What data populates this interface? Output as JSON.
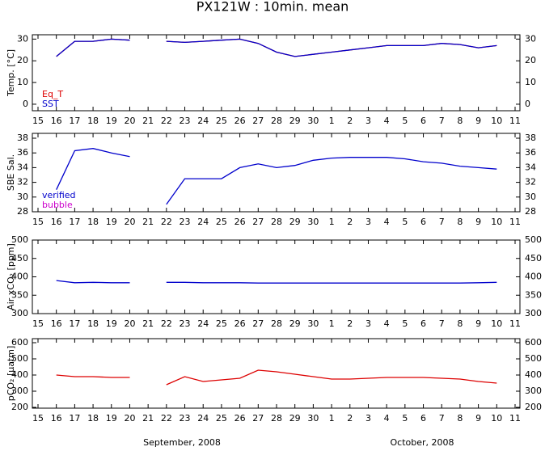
{
  "title": "PX121W : 10min. mean",
  "chart_data": [
    {
      "type": "line",
      "ylabel": "Temp. [°C]",
      "x": [
        "2008-09-16",
        "2008-09-17",
        "2008-09-18",
        "2008-09-19",
        "2008-09-20",
        "2008-09-21",
        "2008-09-22",
        "2008-09-23",
        "2008-09-24",
        "2008-09-25",
        "2008-09-26",
        "2008-09-27",
        "2008-09-28",
        "2008-09-29",
        "2008-09-30",
        "2008-10-01",
        "2008-10-02",
        "2008-10-03",
        "2008-10-04",
        "2008-10-05",
        "2008-10-06",
        "2008-10-07",
        "2008-10-08",
        "2008-10-09",
        "2008-10-10"
      ],
      "xlim": [
        "2008-09-15",
        "2008-10-11"
      ],
      "xticks": [
        {
          "value": "2008-09-15",
          "label": "15"
        },
        {
          "value": "2008-09-16",
          "label": "16"
        },
        {
          "value": "2008-09-17",
          "label": "17"
        },
        {
          "value": "2008-09-18",
          "label": "18"
        },
        {
          "value": "2008-09-19",
          "label": "19"
        },
        {
          "value": "2008-09-20",
          "label": "20"
        },
        {
          "value": "2008-09-21",
          "label": "21"
        },
        {
          "value": "2008-09-22",
          "label": "22"
        },
        {
          "value": "2008-09-23",
          "label": "23"
        },
        {
          "value": "2008-09-24",
          "label": "24"
        },
        {
          "value": "2008-09-25",
          "label": "25"
        },
        {
          "value": "2008-09-26",
          "label": "26"
        },
        {
          "value": "2008-09-27",
          "label": "27"
        },
        {
          "value": "2008-09-28",
          "label": "28"
        },
        {
          "value": "2008-09-29",
          "label": "29"
        },
        {
          "value": "2008-09-30",
          "label": "30"
        },
        {
          "value": "2008-10-01",
          "label": "1"
        },
        {
          "value": "2008-10-02",
          "label": "2"
        },
        {
          "value": "2008-10-03",
          "label": "3"
        },
        {
          "value": "2008-10-04",
          "label": "4"
        },
        {
          "value": "2008-10-05",
          "label": "5"
        },
        {
          "value": "2008-10-06",
          "label": "6"
        },
        {
          "value": "2008-10-07",
          "label": "7"
        },
        {
          "value": "2008-10-08",
          "label": "8"
        },
        {
          "value": "2008-10-09",
          "label": "9"
        },
        {
          "value": "2008-10-10",
          "label": "10"
        },
        {
          "value": "2008-10-11",
          "label": "11"
        }
      ],
      "ylim": [
        -3,
        32
      ],
      "yticks": [
        0,
        10,
        20,
        30
      ],
      "legend": "lower left",
      "series": [
        {
          "name": "Eq_T",
          "color": "#dd0000",
          "values": [
            22,
            29,
            29,
            30,
            29.5,
            null,
            29,
            28.5,
            29,
            29.5,
            30,
            28,
            24,
            22,
            23,
            24,
            25,
            26,
            27,
            27,
            27,
            28,
            27.5,
            26,
            27
          ]
        },
        {
          "name": "SST",
          "color": "#0000cc",
          "values": [
            22,
            29,
            29,
            30,
            29.5,
            null,
            29,
            28.5,
            29,
            29.5,
            30,
            28,
            24,
            22,
            23,
            24,
            25,
            26,
            27,
            27,
            27,
            28,
            27.5,
            26,
            27
          ]
        }
      ]
    },
    {
      "type": "line",
      "ylabel": "SBE Sal.",
      "x": [
        "2008-09-16",
        "2008-09-17",
        "2008-09-18",
        "2008-09-19",
        "2008-09-20",
        "2008-09-21",
        "2008-09-22",
        "2008-09-23",
        "2008-09-24",
        "2008-09-25",
        "2008-09-26",
        "2008-09-27",
        "2008-09-28",
        "2008-09-29",
        "2008-09-30",
        "2008-10-01",
        "2008-10-02",
        "2008-10-03",
        "2008-10-04",
        "2008-10-05",
        "2008-10-06",
        "2008-10-07",
        "2008-10-08",
        "2008-10-09",
        "2008-10-10"
      ],
      "xlim": [
        "2008-09-15",
        "2008-10-11"
      ],
      "xticks": [
        {
          "value": "2008-09-15",
          "label": "15"
        },
        {
          "value": "2008-09-16",
          "label": "16"
        },
        {
          "value": "2008-09-17",
          "label": "17"
        },
        {
          "value": "2008-09-18",
          "label": "18"
        },
        {
          "value": "2008-09-19",
          "label": "19"
        },
        {
          "value": "2008-09-20",
          "label": "20"
        },
        {
          "value": "2008-09-21",
          "label": "21"
        },
        {
          "value": "2008-09-22",
          "label": "22"
        },
        {
          "value": "2008-09-23",
          "label": "23"
        },
        {
          "value": "2008-09-24",
          "label": "24"
        },
        {
          "value": "2008-09-25",
          "label": "25"
        },
        {
          "value": "2008-09-26",
          "label": "26"
        },
        {
          "value": "2008-09-27",
          "label": "27"
        },
        {
          "value": "2008-09-28",
          "label": "28"
        },
        {
          "value": "2008-09-29",
          "label": "29"
        },
        {
          "value": "2008-09-30",
          "label": "30"
        },
        {
          "value": "2008-10-01",
          "label": "1"
        },
        {
          "value": "2008-10-02",
          "label": "2"
        },
        {
          "value": "2008-10-03",
          "label": "3"
        },
        {
          "value": "2008-10-04",
          "label": "4"
        },
        {
          "value": "2008-10-05",
          "label": "5"
        },
        {
          "value": "2008-10-06",
          "label": "6"
        },
        {
          "value": "2008-10-07",
          "label": "7"
        },
        {
          "value": "2008-10-08",
          "label": "8"
        },
        {
          "value": "2008-10-09",
          "label": "9"
        },
        {
          "value": "2008-10-10",
          "label": "10"
        },
        {
          "value": "2008-10-11",
          "label": "11"
        }
      ],
      "ylim": [
        28,
        38
      ],
      "yticks": [
        28,
        30,
        32,
        34,
        36,
        38
      ],
      "legend": "lower left",
      "series": [
        {
          "name": "verified",
          "color": "#0000cc",
          "values": [
            31,
            36.3,
            36.6,
            36,
            35.5,
            null,
            29,
            32.5,
            32.5,
            32.5,
            34,
            34.5,
            34,
            34.3,
            35,
            35.3,
            35.4,
            35.4,
            35.4,
            35.2,
            34.8,
            34.6,
            34.2,
            34,
            33.8
          ]
        },
        {
          "name": "bubble",
          "color": "#cc00cc",
          "values": [
            null,
            null,
            null,
            null,
            null,
            null,
            null,
            null,
            null,
            null,
            null,
            null,
            null,
            null,
            null,
            null,
            null,
            null,
            null,
            null,
            null,
            null,
            null,
            null,
            null
          ]
        }
      ]
    },
    {
      "type": "line",
      "ylabel": "Air xCO₂ [ppm]",
      "x": [
        "2008-09-16",
        "2008-09-17",
        "2008-09-18",
        "2008-09-19",
        "2008-09-20",
        "2008-09-21",
        "2008-09-22",
        "2008-09-23",
        "2008-09-24",
        "2008-09-25",
        "2008-09-26",
        "2008-09-27",
        "2008-09-28",
        "2008-09-29",
        "2008-09-30",
        "2008-10-01",
        "2008-10-02",
        "2008-10-03",
        "2008-10-04",
        "2008-10-05",
        "2008-10-06",
        "2008-10-07",
        "2008-10-08",
        "2008-10-09",
        "2008-10-10"
      ],
      "xlim": [
        "2008-09-15",
        "2008-10-11"
      ],
      "xticks": [
        {
          "value": "2008-09-15",
          "label": "15"
        },
        {
          "value": "2008-09-16",
          "label": "16"
        },
        {
          "value": "2008-09-17",
          "label": "17"
        },
        {
          "value": "2008-09-18",
          "label": "18"
        },
        {
          "value": "2008-09-19",
          "label": "19"
        },
        {
          "value": "2008-09-20",
          "label": "20"
        },
        {
          "value": "2008-09-21",
          "label": "21"
        },
        {
          "value": "2008-09-22",
          "label": "22"
        },
        {
          "value": "2008-09-23",
          "label": "23"
        },
        {
          "value": "2008-09-24",
          "label": "24"
        },
        {
          "value": "2008-09-25",
          "label": "25"
        },
        {
          "value": "2008-09-26",
          "label": "26"
        },
        {
          "value": "2008-09-27",
          "label": "27"
        },
        {
          "value": "2008-09-28",
          "label": "28"
        },
        {
          "value": "2008-09-29",
          "label": "29"
        },
        {
          "value": "2008-09-30",
          "label": "30"
        },
        {
          "value": "2008-10-01",
          "label": "1"
        },
        {
          "value": "2008-10-02",
          "label": "2"
        },
        {
          "value": "2008-10-03",
          "label": "3"
        },
        {
          "value": "2008-10-04",
          "label": "4"
        },
        {
          "value": "2008-10-05",
          "label": "5"
        },
        {
          "value": "2008-10-06",
          "label": "6"
        },
        {
          "value": "2008-10-07",
          "label": "7"
        },
        {
          "value": "2008-10-08",
          "label": "8"
        },
        {
          "value": "2008-10-09",
          "label": "9"
        },
        {
          "value": "2008-10-10",
          "label": "10"
        },
        {
          "value": "2008-10-11",
          "label": "11"
        }
      ],
      "ylim": [
        300,
        500
      ],
      "yticks": [
        300,
        350,
        400,
        450,
        500
      ],
      "series": [
        {
          "color": "#0000cc",
          "values": [
            390,
            384,
            385,
            384,
            384,
            null,
            385,
            385,
            384,
            384,
            384,
            383,
            383,
            383,
            383,
            383,
            383,
            383,
            383,
            383,
            383,
            383,
            383,
            384,
            385
          ]
        }
      ]
    },
    {
      "type": "line",
      "ylabel": "pCO₂ [μatm]",
      "x": [
        "2008-09-16",
        "2008-09-17",
        "2008-09-18",
        "2008-09-19",
        "2008-09-20",
        "2008-09-21",
        "2008-09-22",
        "2008-09-23",
        "2008-09-24",
        "2008-09-25",
        "2008-09-26",
        "2008-09-27",
        "2008-09-28",
        "2008-09-29",
        "2008-09-30",
        "2008-10-01",
        "2008-10-02",
        "2008-10-03",
        "2008-10-04",
        "2008-10-05",
        "2008-10-06",
        "2008-10-07",
        "2008-10-08",
        "2008-10-09",
        "2008-10-10"
      ],
      "xlim": [
        "2008-09-15",
        "2008-10-11"
      ],
      "xticks": [
        {
          "value": "2008-09-15",
          "label": "15"
        },
        {
          "value": "2008-09-16",
          "label": "16"
        },
        {
          "value": "2008-09-17",
          "label": "17"
        },
        {
          "value": "2008-09-18",
          "label": "18"
        },
        {
          "value": "2008-09-19",
          "label": "19"
        },
        {
          "value": "2008-09-20",
          "label": "20"
        },
        {
          "value": "2008-09-21",
          "label": "21"
        },
        {
          "value": "2008-09-22",
          "label": "22"
        },
        {
          "value": "2008-09-23",
          "label": "23"
        },
        {
          "value": "2008-09-24",
          "label": "24"
        },
        {
          "value": "2008-09-25",
          "label": "25"
        },
        {
          "value": "2008-09-26",
          "label": "26"
        },
        {
          "value": "2008-09-27",
          "label": "27"
        },
        {
          "value": "2008-09-28",
          "label": "28"
        },
        {
          "value": "2008-09-29",
          "label": "29"
        },
        {
          "value": "2008-09-30",
          "label": "30"
        },
        {
          "value": "2008-10-01",
          "label": "1"
        },
        {
          "value": "2008-10-02",
          "label": "2"
        },
        {
          "value": "2008-10-03",
          "label": "3"
        },
        {
          "value": "2008-10-04",
          "label": "4"
        },
        {
          "value": "2008-10-05",
          "label": "5"
        },
        {
          "value": "2008-10-06",
          "label": "6"
        },
        {
          "value": "2008-10-07",
          "label": "7"
        },
        {
          "value": "2008-10-08",
          "label": "8"
        },
        {
          "value": "2008-10-09",
          "label": "9"
        },
        {
          "value": "2008-10-10",
          "label": "10"
        },
        {
          "value": "2008-10-11",
          "label": "11"
        }
      ],
      "ylim": [
        200,
        600
      ],
      "yticks": [
        200,
        300,
        400,
        500,
        600
      ],
      "x_month_labels": [
        "September, 2008",
        "October, 2008"
      ],
      "series": [
        {
          "color": "#dd0000",
          "values": [
            400,
            390,
            390,
            385,
            385,
            null,
            340,
            390,
            360,
            370,
            380,
            430,
            420,
            405,
            390,
            375,
            375,
            380,
            385,
            385,
            385,
            380,
            375,
            360,
            350
          ]
        }
      ]
    }
  ]
}
